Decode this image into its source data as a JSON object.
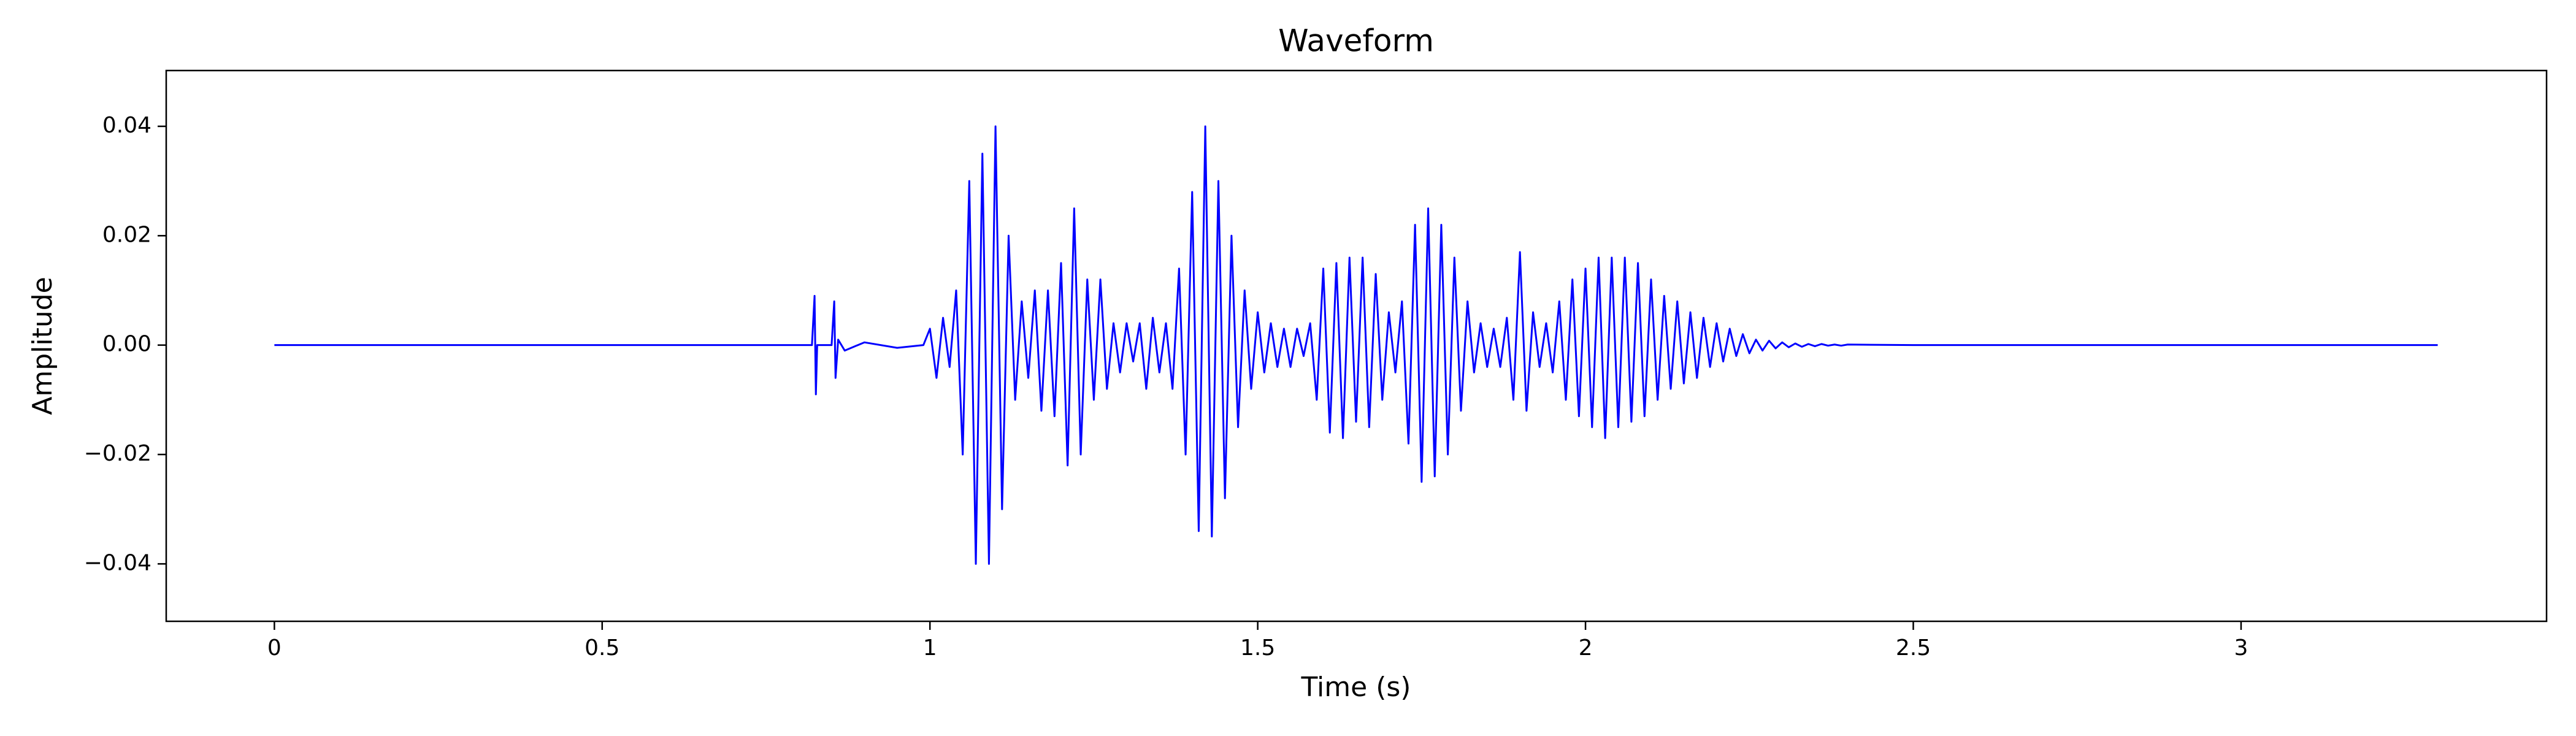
{
  "chart_data": {
    "type": "line",
    "title": "Waveform",
    "xlabel": "Time (s)",
    "ylabel": "Amplitude",
    "color": "#0000ff",
    "xlim": [
      -0.165,
      3.466
    ],
    "ylim": [
      -0.0505,
      0.0502
    ],
    "xticks": [
      0,
      0.5,
      1,
      1.5,
      2,
      2.5,
      3
    ],
    "yticks": [
      {
        "value": -0.04,
        "label": "−0.04"
      },
      {
        "value": -0.02,
        "label": "−0.02"
      },
      {
        "value": 0,
        "label": "0.00"
      },
      0.02,
      0.04
    ],
    "x": [
      0,
      0.82,
      0.824,
      0.826,
      0.828,
      0.85,
      0.854,
      0.856,
      0.86,
      0.87,
      0.9,
      0.95,
      0.99,
      1.0,
      1.01,
      1.02,
      1.03,
      1.04,
      1.05,
      1.06,
      1.07,
      1.08,
      1.09,
      1.1,
      1.11,
      1.12,
      1.13,
      1.14,
      1.15,
      1.16,
      1.17,
      1.18,
      1.19,
      1.2,
      1.21,
      1.22,
      1.23,
      1.24,
      1.25,
      1.26,
      1.27,
      1.28,
      1.29,
      1.3,
      1.31,
      1.32,
      1.33,
      1.34,
      1.35,
      1.36,
      1.37,
      1.38,
      1.39,
      1.4,
      1.41,
      1.42,
      1.43,
      1.44,
      1.45,
      1.46,
      1.47,
      1.48,
      1.49,
      1.5,
      1.51,
      1.52,
      1.53,
      1.54,
      1.55,
      1.56,
      1.57,
      1.58,
      1.59,
      1.6,
      1.61,
      1.62,
      1.63,
      1.64,
      1.65,
      1.66,
      1.67,
      1.68,
      1.69,
      1.7,
      1.71,
      1.72,
      1.73,
      1.74,
      1.75,
      1.76,
      1.77,
      1.78,
      1.79,
      1.8,
      1.81,
      1.82,
      1.83,
      1.84,
      1.85,
      1.86,
      1.87,
      1.88,
      1.89,
      1.9,
      1.91,
      1.92,
      1.93,
      1.94,
      1.95,
      1.96,
      1.97,
      1.98,
      1.99,
      2.0,
      2.01,
      2.02,
      2.03,
      2.04,
      2.05,
      2.06,
      2.07,
      2.08,
      2.09,
      2.1,
      2.11,
      2.12,
      2.13,
      2.14,
      2.15,
      2.16,
      2.17,
      2.18,
      2.19,
      2.2,
      2.21,
      2.22,
      2.23,
      2.24,
      2.25,
      2.26,
      2.27,
      2.28,
      2.29,
      2.3,
      2.31,
      2.32,
      2.33,
      2.34,
      2.35,
      2.36,
      2.37,
      2.38,
      2.39,
      2.4,
      2.5,
      3.3
    ],
    "values": [
      0,
      0,
      0.009,
      -0.009,
      0,
      0,
      0.008,
      -0.006,
      0.001,
      -0.001,
      0.0005,
      -0.0005,
      0,
      0.003,
      -0.006,
      0.005,
      -0.004,
      0.01,
      -0.02,
      0.03,
      -0.04,
      0.035,
      -0.04,
      0.04,
      -0.03,
      0.02,
      -0.01,
      0.008,
      -0.006,
      0.01,
      -0.012,
      0.01,
      -0.013,
      0.015,
      -0.022,
      0.025,
      -0.02,
      0.012,
      -0.01,
      0.012,
      -0.008,
      0.004,
      -0.005,
      0.004,
      -0.003,
      0.004,
      -0.008,
      0.005,
      -0.005,
      0.004,
      -0.008,
      0.014,
      -0.02,
      0.028,
      -0.034,
      0.04,
      -0.035,
      0.03,
      -0.028,
      0.02,
      -0.015,
      0.01,
      -0.008,
      0.006,
      -0.005,
      0.004,
      -0.004,
      0.003,
      -0.004,
      0.003,
      -0.002,
      0.004,
      -0.01,
      0.014,
      -0.016,
      0.015,
      -0.017,
      0.016,
      -0.014,
      0.016,
      -0.015,
      0.013,
      -0.01,
      0.006,
      -0.005,
      0.008,
      -0.018,
      0.022,
      -0.025,
      0.025,
      -0.024,
      0.022,
      -0.02,
      0.016,
      -0.012,
      0.008,
      -0.005,
      0.004,
      -0.004,
      0.003,
      -0.004,
      0.005,
      -0.01,
      0.017,
      -0.012,
      0.006,
      -0.004,
      0.004,
      -0.005,
      0.008,
      -0.01,
      0.012,
      -0.013,
      0.014,
      -0.015,
      0.016,
      -0.017,
      0.016,
      -0.015,
      0.016,
      -0.014,
      0.015,
      -0.013,
      0.012,
      -0.01,
      0.009,
      -0.008,
      0.008,
      -0.007,
      0.006,
      -0.006,
      0.005,
      -0.004,
      0.004,
      -0.003,
      0.003,
      -0.002,
      0.002,
      -0.0015,
      0.001,
      -0.001,
      0.0008,
      -0.0006,
      0.0005,
      -0.0004,
      0.0003,
      -0.0003,
      0.0002,
      -0.0002,
      0.0002,
      -0.0001,
      0.0001,
      -0.0001,
      0.0001,
      0,
      0
    ]
  }
}
